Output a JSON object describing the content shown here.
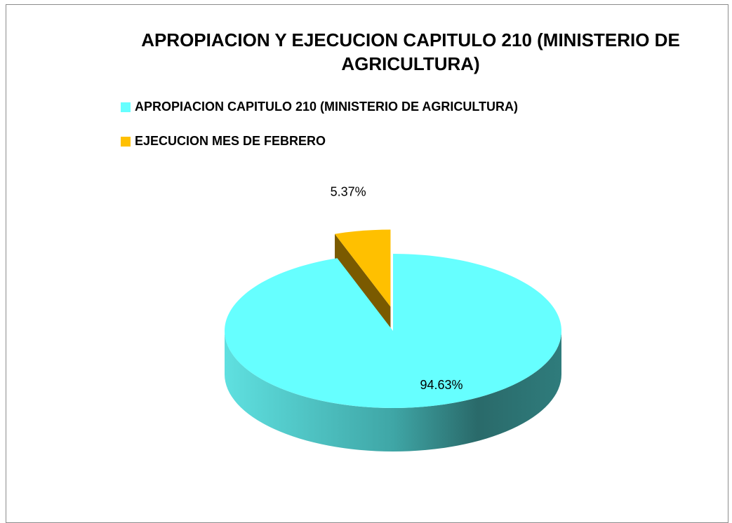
{
  "chart_data": {
    "type": "pie",
    "title": "APROPIACION Y EJECUCION CAPITULO 210 (MINISTERIO DE AGRICULTURA)",
    "categories": [
      "APROPIACION CAPITULO 210 (MINISTERIO DE AGRICULTURA)",
      "EJECUCION MES DE FEBRERO"
    ],
    "values": [
      94.63,
      5.37
    ],
    "value_labels": [
      "94.63%",
      "5.37%"
    ],
    "colors": [
      "#66ffff",
      "#ffc000"
    ],
    "legend": "top"
  }
}
